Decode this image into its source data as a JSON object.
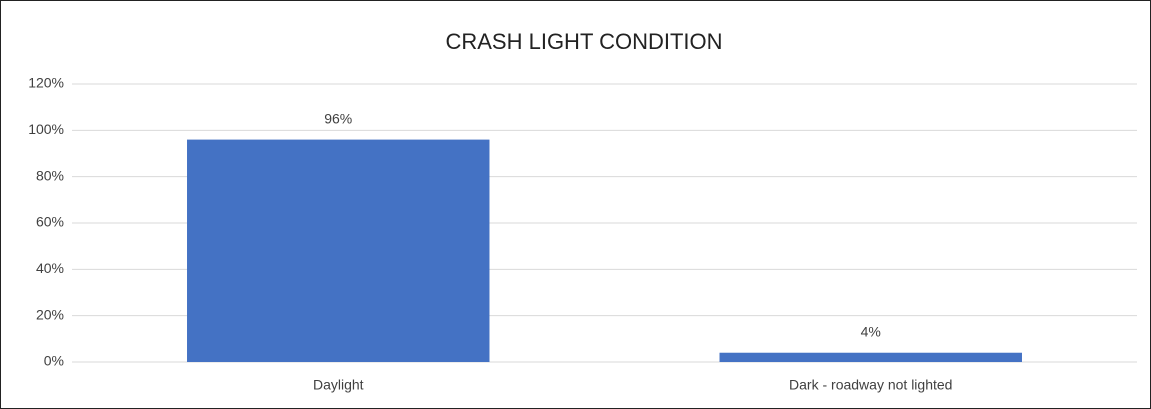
{
  "chart_data": {
    "type": "bar",
    "title": "CRASH LIGHT CONDITION",
    "categories": [
      "Daylight",
      "Dark - roadway not lighted"
    ],
    "values": [
      96,
      4
    ],
    "value_labels": [
      "96%",
      "4%"
    ],
    "color": "#4472c4",
    "ylim": [
      0,
      120
    ],
    "yticks": [
      {
        "value": 0,
        "label": "0%"
      },
      {
        "value": 20,
        "label": "20%"
      },
      {
        "value": 40,
        "label": "40%"
      },
      {
        "value": 60,
        "label": "60%"
      },
      {
        "value": 80,
        "label": "80%"
      },
      {
        "value": 100,
        "label": "100%"
      },
      {
        "value": 120,
        "label": "120%"
      }
    ],
    "grid": true
  }
}
